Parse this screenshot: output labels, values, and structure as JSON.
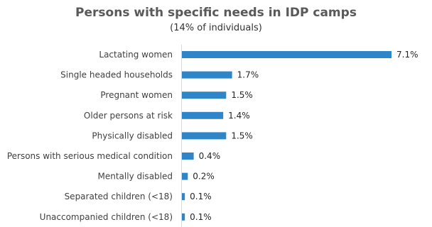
{
  "chart_data": {
    "type": "bar",
    "orientation": "horizontal",
    "title": "Persons with specific needs in IDP camps",
    "subtitle": "(14% of individuals)",
    "categories": [
      "Lactating women",
      "Single headed households",
      "Pregnant women",
      "Older persons at risk ",
      "Physically disabled",
      "Persons with serious medical condition",
      "Mentally disabled",
      "Separated children (<18)",
      "Unaccompanied children (<18)"
    ],
    "values": [
      7.1,
      1.7,
      1.5,
      1.4,
      1.5,
      0.4,
      0.2,
      0.1,
      0.1
    ],
    "value_labels": [
      "7.1%",
      "1.7%",
      "1.5%",
      "1.4%",
      "1.5%",
      "0.4%",
      "0.2%",
      "0.1%",
      "0.1%"
    ],
    "xlim": [
      0,
      7.1
    ],
    "grid": false,
    "bar_color": "#2e86c9"
  }
}
